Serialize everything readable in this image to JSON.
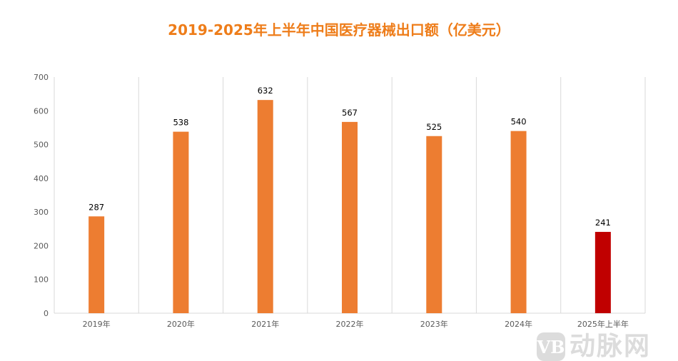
{
  "chart_data": {
    "type": "bar",
    "title": "2019-2025年上半年中国医疗器械出口额（亿美元）",
    "categories": [
      "2019年",
      "2020年",
      "2021年",
      "2022年",
      "2023年",
      "2024年",
      "2025年上半年"
    ],
    "values": [
      287,
      538,
      632,
      567,
      525,
      540,
      241
    ],
    "bar_colors": [
      "#ed7d31",
      "#ed7d31",
      "#ed7d31",
      "#ed7d31",
      "#ed7d31",
      "#ed7d31",
      "#c00000"
    ],
    "ylim": [
      0,
      700
    ],
    "yticks": [
      0,
      100,
      200,
      300,
      400,
      500,
      600,
      700
    ],
    "grid": "vertical category separators",
    "data_labels": true,
    "xlabel": "",
    "ylabel": ""
  },
  "title_color": "#ee7d1a",
  "watermark": {
    "logo": "VB",
    "text": "动脉网"
  }
}
